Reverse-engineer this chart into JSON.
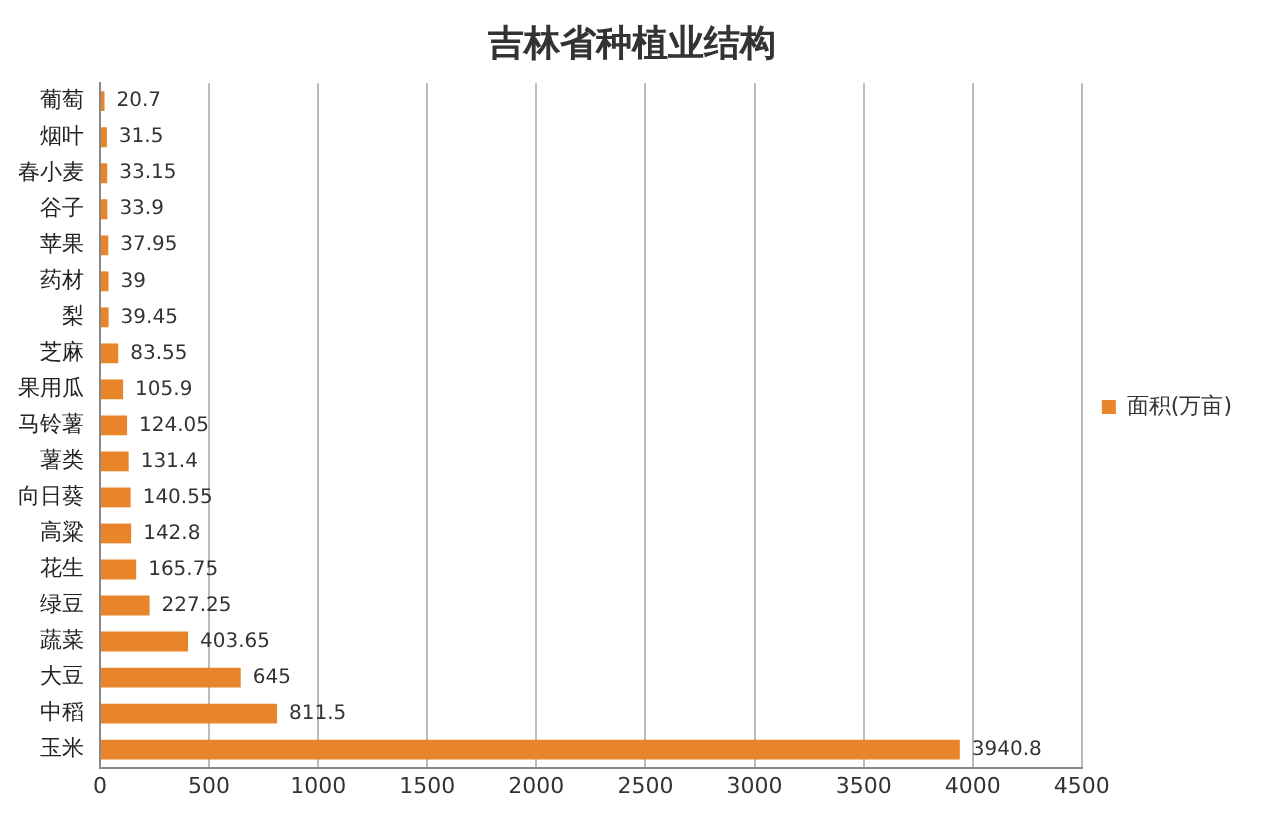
{
  "chart_data": {
    "type": "bar",
    "orientation": "horizontal",
    "title": "吉林省种植业结构",
    "categories": [
      "葡萄",
      "烟叶",
      "春小麦",
      "谷子",
      "苹果",
      "药材",
      "梨",
      "芝麻",
      "果用瓜",
      "马铃薯",
      "薯类",
      "向日葵",
      "高粱",
      "花生",
      "绿豆",
      "蔬菜",
      "大豆",
      "中稻",
      "玉米"
    ],
    "series": [
      {
        "name": "面积(万亩)",
        "color": "#e8852a",
        "values": [
          20.7,
          31.5,
          33.15,
          33.9,
          37.95,
          39,
          39.45,
          83.55,
          105.9,
          124.05,
          131.4,
          140.55,
          142.8,
          165.75,
          227.25,
          403.65,
          645,
          811.5,
          3940.8
        ]
      }
    ],
    "xlim": [
      0,
      4500
    ],
    "xticks": [
      0,
      500,
      1000,
      1500,
      2000,
      2500,
      3000,
      3500,
      4000,
      4500
    ],
    "grid": "x",
    "legend": "right",
    "data_labels": true
  }
}
